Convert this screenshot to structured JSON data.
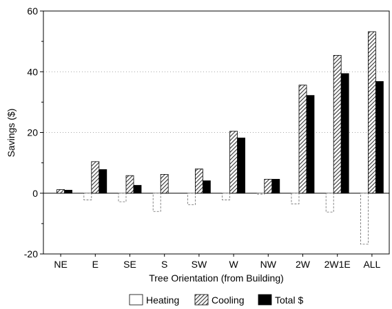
{
  "chart_data": {
    "type": "bar",
    "xlabel": "Tree Orientation (from Building)",
    "ylabel": "Savings ($)",
    "ylim": [
      -20,
      60
    ],
    "yticks": [
      -20,
      0,
      20,
      40,
      60
    ],
    "grid": "horizontal dotted",
    "legend_position": "bottom-center",
    "categories": [
      "NE",
      "E",
      "SE",
      "S",
      "SW",
      "W",
      "NW",
      "2W",
      "2W1E",
      "ALL"
    ],
    "series": [
      {
        "name": "Heating",
        "pattern": "white",
        "values": [
          0,
          -2.2,
          -2.8,
          -6,
          -3.8,
          -2.2,
          -0.3,
          -3.5,
          -6.2,
          -16.8
        ]
      },
      {
        "name": "Cooling",
        "pattern": "hatched",
        "values": [
          1.2,
          10.4,
          5.8,
          6.2,
          8,
          20.4,
          4.6,
          35.6,
          45.4,
          53.2
        ]
      },
      {
        "name": "Total $",
        "pattern": "black",
        "values": [
          1,
          7.8,
          2.6,
          0,
          4.1,
          18.2,
          4.6,
          32.2,
          39.4,
          36.8
        ]
      }
    ]
  }
}
